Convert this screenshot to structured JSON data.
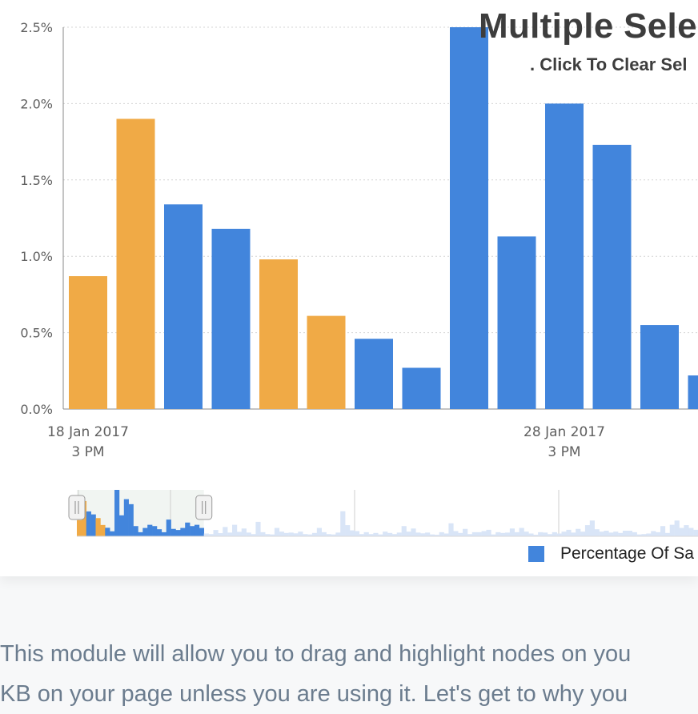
{
  "chart_data": {
    "type": "bar",
    "title": "Multiple Sele",
    "subtitle": ". Click To Clear Sel",
    "legend": {
      "label": "Percentage Of Sa",
      "placement": "bottom-right"
    },
    "ylim": [
      0,
      2.5
    ],
    "y_ticks": [
      "0.0%",
      "0.5%",
      "1.0%",
      "1.5%",
      "2.0%",
      "2.5%"
    ],
    "x_ticks": [
      {
        "line1": "18 Jan 2017",
        "line2": "3 PM"
      },
      {
        "line1": "28 Jan 2017",
        "line2": "3 PM"
      }
    ],
    "values": [
      0.87,
      1.9,
      1.34,
      1.18,
      0.98,
      0.61,
      0.46,
      0.27,
      2.5,
      1.13,
      2.0,
      1.73,
      0.55,
      0.22
    ],
    "selected": [
      true,
      true,
      false,
      false,
      true,
      true,
      false,
      false,
      false,
      false,
      false,
      false,
      false,
      false
    ],
    "grid": true,
    "colors": {
      "bar": "#4285dc",
      "selected": "#f0aa46",
      "navigator_bar": "#d9e5f7"
    },
    "navigator": {
      "values": [
        0.87,
        1.9,
        1.34,
        1.18,
        0.98,
        0.61,
        0.46,
        0.27,
        2.5,
        1.13,
        2.0,
        1.73,
        0.55,
        0.22,
        0.45,
        0.62,
        0.55,
        0.38,
        0.22,
        0.9,
        0.4,
        0.34,
        0.45,
        0.74,
        0.55,
        0.62,
        0.45,
        0.15,
        0.12,
        0.34,
        0.17,
        0.5,
        0.2,
        0.62,
        0.24,
        0.42,
        0.2,
        0.12,
        0.78,
        0.22,
        0.12,
        0.1,
        0.45,
        0.25,
        0.18,
        0.2,
        0.16,
        0.25,
        0.12,
        0.1,
        0.18,
        0.45,
        0.22,
        0.12,
        0.1,
        0.2,
        1.35,
        0.6,
        0.32,
        0.28,
        0.12,
        0.22,
        0.12,
        0.18,
        0.1,
        0.25,
        0.18,
        0.12,
        0.2,
        0.55,
        0.25,
        0.42,
        0.2,
        0.16,
        0.2,
        0.1,
        0.08,
        0.22,
        0.15,
        0.7,
        0.28,
        0.18,
        0.4,
        0.12,
        0.22,
        0.22,
        0.28,
        0.35,
        0.1,
        0.22,
        0.18,
        0.2,
        0.42,
        0.22,
        0.45,
        0.25,
        0.15,
        0.08,
        0.22,
        0.2,
        0.12,
        0.22,
        0.15,
        0.25,
        0.35,
        0.2,
        0.4,
        0.25,
        0.6,
        0.85,
        0.38,
        0.25,
        0.3,
        0.2,
        0.25,
        0.18,
        0.3,
        0.3,
        0.22,
        0.1,
        0.12,
        0.15,
        0.28,
        0.22,
        0.55,
        0.18,
        0.62,
        0.85,
        0.45,
        0.6,
        0.45,
        0.35
      ],
      "selected_indices": [
        0,
        1,
        4,
        5
      ],
      "window_bars": 27
    }
  },
  "description": {
    "line1": "This module will allow you to drag and highlight nodes on you",
    "line2": "KB on your page unless you are using it. Let's get to why you"
  }
}
